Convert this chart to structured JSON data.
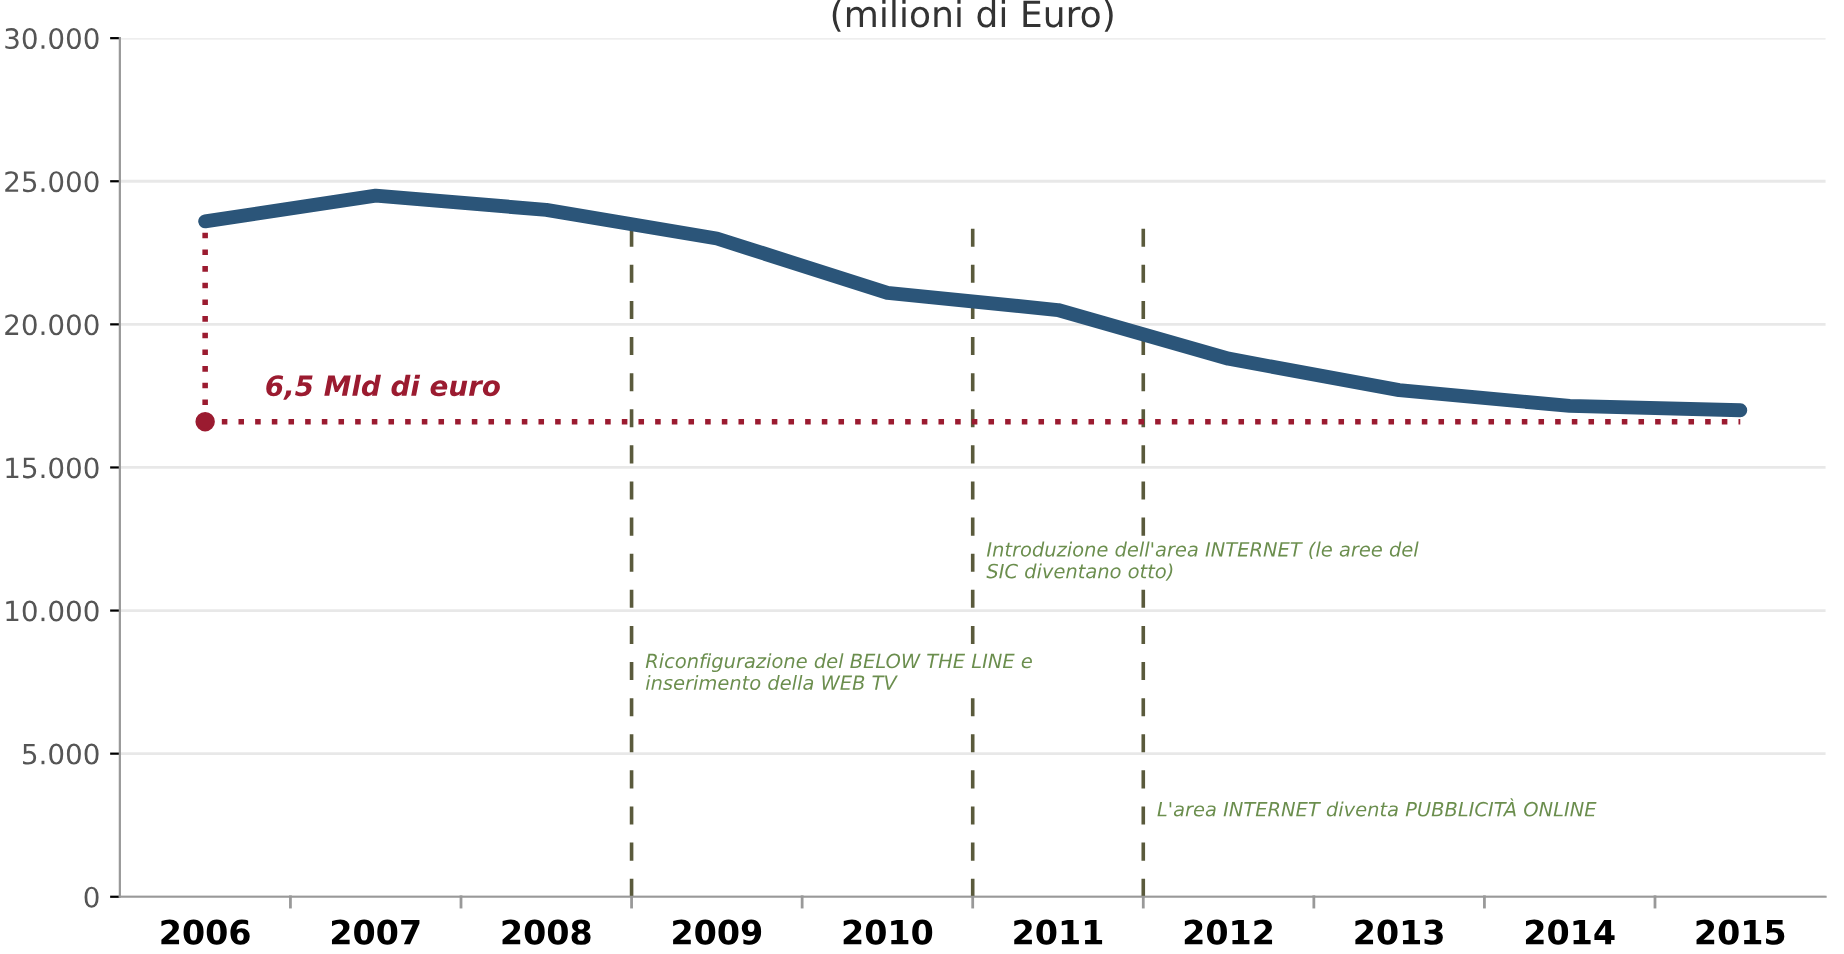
{
  "chart_data": {
    "type": "line",
    "title": "(milioni di Euro)",
    "categories": [
      "2006",
      "2007",
      "2008",
      "2009",
      "2010",
      "2011",
      "2012",
      "2013",
      "2014",
      "2015"
    ],
    "series": [
      {
        "color": "#2b5579",
        "values": [
          23600,
          24500,
          24000,
          23000,
          21100,
          20500,
          18800,
          17700,
          17150,
          17000
        ]
      }
    ],
    "ylim": [
      0,
      30000
    ],
    "yticks": [
      {
        "value": 0,
        "label": "0"
      },
      {
        "value": 5000,
        "label": "5.000"
      },
      {
        "value": 10000,
        "label": "10.000"
      },
      {
        "value": 15000,
        "label": "15.000"
      },
      {
        "value": 20000,
        "label": "20.000"
      },
      {
        "value": 25000,
        "label": "25.000"
      },
      {
        "value": 30000,
        "label": "30.000"
      }
    ],
    "grid": "y",
    "marker": "none",
    "line_style": "solid",
    "ref_lines": [
      {
        "axis": "y",
        "value": 16600,
        "label": "6,5 Mld di euro",
        "color": "#9b1b30",
        "line_style": "dotted"
      }
    ],
    "annotations": [
      "Riconfigurazione del BELOW THE LINE e\ninserimento della WEB TV",
      "Introduzione dell'area INTERNET (le aree del\nSIC diventano otto)",
      "L'area INTERNET diventa PUBBLICITÀ ONLINE"
    ]
  }
}
